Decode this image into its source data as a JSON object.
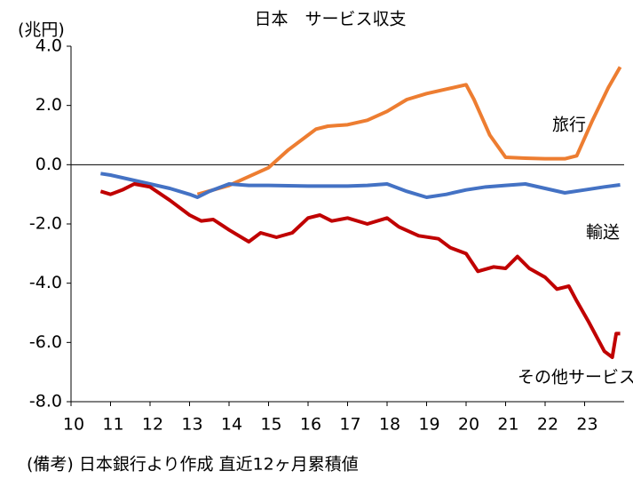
{
  "chart_data": {
    "type": "line",
    "title": "日本　サービス収支",
    "y_label": "(兆円)",
    "note": "(備考) 日本銀行より作成 直近12ヶ月累積値",
    "xlim": [
      10,
      24
    ],
    "xticks": [
      10,
      11,
      12,
      13,
      14,
      15,
      16,
      17,
      18,
      19,
      20,
      21,
      22,
      23
    ],
    "ylim": [
      -8,
      4
    ],
    "yticks": [
      {
        "value": -8,
        "label": "-8.0"
      },
      {
        "value": -6,
        "label": "-6.0"
      },
      {
        "value": -4,
        "label": "-4.0"
      },
      {
        "value": -2,
        "label": "-2.0"
      },
      {
        "value": 0,
        "label": "0.0"
      },
      {
        "value": 2,
        "label": "2.0"
      },
      {
        "value": 4,
        "label": "4.0"
      }
    ],
    "series": [
      {
        "name": "旅行",
        "color": "#ED7D31",
        "x": [
          13.2,
          13.6,
          14,
          14.5,
          15,
          15.5,
          16,
          16.2,
          16.5,
          17,
          17.5,
          18,
          18.5,
          19,
          19.5,
          20,
          20.2,
          20.6,
          21,
          21.5,
          22,
          22.5,
          22.8,
          23.2,
          23.6,
          23.9
        ],
        "values": [
          -1.0,
          -0.85,
          -0.7,
          -0.4,
          -0.1,
          0.5,
          1.0,
          1.2,
          1.3,
          1.35,
          1.5,
          1.8,
          2.2,
          2.4,
          2.55,
          2.7,
          2.2,
          1.0,
          0.25,
          0.22,
          0.2,
          0.2,
          0.3,
          1.5,
          2.6,
          3.3
        ]
      },
      {
        "name": "輸送",
        "color": "#4472C4",
        "x": [
          10.75,
          11,
          11.5,
          12,
          12.5,
          13,
          13.2,
          13.5,
          14,
          14.5,
          15,
          16,
          17,
          17.5,
          18,
          18.5,
          19,
          19.5,
          20,
          20.5,
          21,
          21.5,
          22,
          22.5,
          23,
          23.5,
          23.9
        ],
        "values": [
          -0.3,
          -0.35,
          -0.5,
          -0.65,
          -0.8,
          -1.0,
          -1.1,
          -0.9,
          -0.65,
          -0.7,
          -0.7,
          -0.72,
          -0.72,
          -0.7,
          -0.65,
          -0.9,
          -1.1,
          -1.0,
          -0.85,
          -0.75,
          -0.7,
          -0.65,
          -0.8,
          -0.95,
          -0.85,
          -0.75,
          -0.68
        ]
      },
      {
        "name": "その他サービス",
        "color": "#C00000",
        "x": [
          10.75,
          11,
          11.3,
          11.6,
          12,
          12.5,
          13,
          13.3,
          13.6,
          14,
          14.5,
          14.8,
          15.2,
          15.6,
          16,
          16.3,
          16.6,
          17,
          17.5,
          18,
          18.3,
          18.8,
          19.3,
          19.6,
          20,
          20.3,
          20.7,
          21,
          21.3,
          21.6,
          22,
          22.3,
          22.6,
          22.8,
          23.1,
          23.5,
          23.7,
          23.8,
          23.9
        ],
        "values": [
          -0.9,
          -1.0,
          -0.85,
          -0.65,
          -0.75,
          -1.2,
          -1.7,
          -1.9,
          -1.85,
          -2.2,
          -2.6,
          -2.3,
          -2.45,
          -2.3,
          -1.8,
          -1.7,
          -1.9,
          -1.8,
          -2.0,
          -1.8,
          -2.1,
          -2.4,
          -2.5,
          -2.8,
          -3.0,
          -3.6,
          -3.45,
          -3.5,
          -3.1,
          -3.5,
          -3.8,
          -4.2,
          -4.1,
          -4.6,
          -5.3,
          -6.3,
          -6.5,
          -5.7,
          -5.7
        ]
      }
    ]
  }
}
